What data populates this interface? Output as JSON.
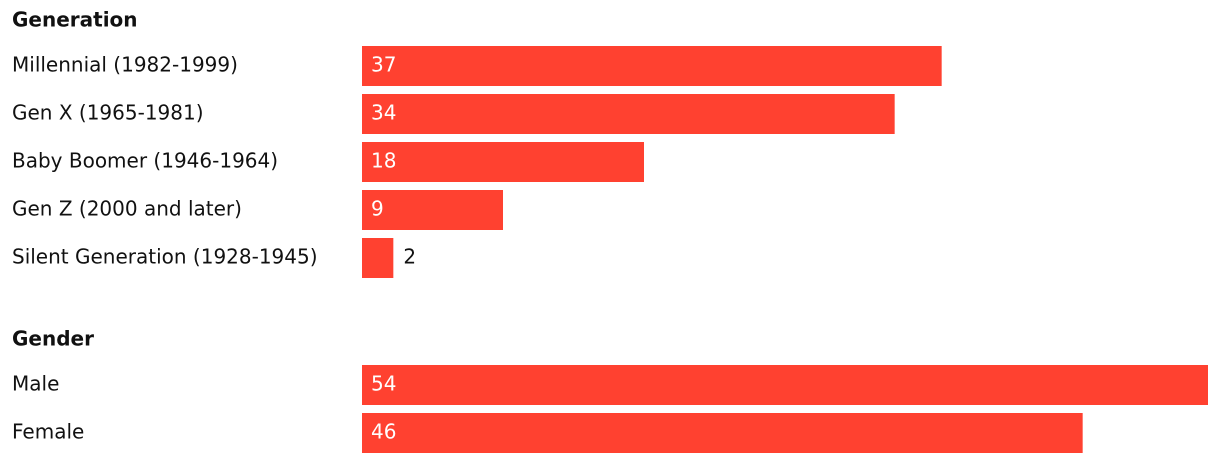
{
  "chart_data": [
    {
      "type": "bar",
      "title": "Generation",
      "color": "#ff4130",
      "categories": [
        "Millennial (1982-1999)",
        "Gen X (1965-1981)",
        "Baby Boomer (1946-1964)",
        "Gen Z (2000 and later)",
        "Silent Generation (1928-1945)"
      ],
      "values": [
        37,
        34,
        18,
        9,
        2
      ]
    },
    {
      "type": "bar",
      "title": "Gender",
      "color": "#ff4130",
      "categories": [
        "Male",
        "Female"
      ],
      "values": [
        54,
        46
      ]
    }
  ]
}
